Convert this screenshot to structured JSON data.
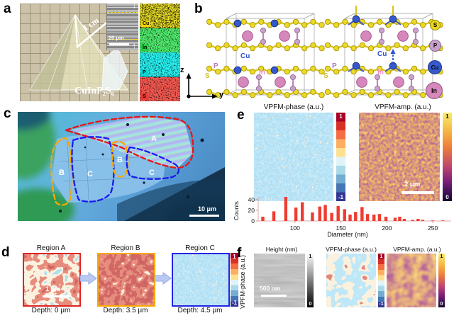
{
  "panels": {
    "a": {
      "label": "a",
      "formula": "CuInP₂S₆",
      "scale_label": "1 cm",
      "inset": {
        "scale_label": "20 μm",
        "arrow_down": "↓",
        "arrow_up": "↑"
      },
      "eds": [
        {
          "element": "Cu",
          "color": "#f0d400"
        },
        {
          "element": "In",
          "color": "#1ecf3c"
        },
        {
          "element": "P",
          "color": "#00d8d8"
        },
        {
          "element": "S",
          "color": "#f23535"
        }
      ]
    },
    "b": {
      "label": "b",
      "atom_labels": {
        "cu": "Cu",
        "p": "P",
        "in": "In",
        "s": "S"
      },
      "legend": [
        {
          "symbol": "S",
          "color": "#e9d420"
        },
        {
          "symbol": "P",
          "color": "#c9a0cc"
        },
        {
          "symbol": "Cu",
          "color": "#3558cc"
        },
        {
          "symbol": "In",
          "color": "#d687bc"
        }
      ],
      "axes": {
        "z": "z",
        "y": "y"
      }
    },
    "c": {
      "label": "c",
      "regions": {
        "A": "A",
        "B1": "B",
        "C1": "C",
        "B2": "B",
        "C2": "C"
      },
      "scale_label": "10 μm",
      "outline_colors": {
        "region_a": "#e81515",
        "region_b": "#f7a800",
        "region_c": "#1a1af0"
      }
    },
    "d": {
      "label": "d",
      "images": [
        {
          "title": "Region A",
          "depth": "Depth: 0 μm",
          "border_color": "#e02424",
          "scale_label": "1 μm"
        },
        {
          "title": "Region B",
          "depth": "Depth: 3.5 μm",
          "border_color": "#f7a800"
        },
        {
          "title": "Region C",
          "depth": "Depth: 4.5 μm",
          "border_color": "#2424e8"
        }
      ],
      "colorbar": {
        "label": "VPFM-phase (a.u.)",
        "max": "1",
        "min": "-1"
      }
    },
    "e": {
      "label": "e",
      "phase": {
        "title": "VPFM-phase (a.u.)",
        "colorbar_max": "1",
        "colorbar_min": "-1"
      },
      "amp": {
        "title": "VPFM-amp. (a.u.)",
        "colorbar_max": "1",
        "colorbar_min": "0",
        "scale_label": "2 μm"
      }
    },
    "f": {
      "label": "f",
      "height": {
        "title": "Height (nm)",
        "colorbar_max": "1",
        "colorbar_min": "0",
        "scale_label": "500 nm"
      },
      "phase": {
        "title": "VPFM-phase (a.u.)",
        "colorbar_max": "1",
        "colorbar_min": "-1"
      },
      "amp": {
        "title": "VPFM-amp. (a.u.)",
        "colorbar_max": "1",
        "colorbar_min": "0"
      }
    }
  },
  "chart_data": {
    "type": "bar",
    "title": "",
    "xlabel": "Diameter (nm)",
    "ylabel": "Counts",
    "x": [
      65,
      77,
      90,
      101,
      108,
      119,
      127,
      133,
      140,
      147,
      154,
      160,
      166,
      173,
      179,
      186,
      192,
      199,
      209,
      214,
      219,
      228,
      234,
      239,
      250,
      261
    ],
    "values": [
      8,
      18,
      45,
      25,
      35,
      16,
      27,
      30,
      15,
      28,
      22,
      12,
      17,
      26,
      13,
      12,
      13,
      8,
      6,
      8,
      4,
      2,
      4,
      2,
      1,
      1
    ],
    "xlim": [
      60,
      270
    ],
    "ylim": [
      0,
      45
    ],
    "xticks": [
      100,
      150,
      200,
      250
    ],
    "yticks": [
      0,
      20,
      40
    ],
    "bar_color": "#f03b30",
    "grid": false,
    "legend_position": "none"
  }
}
